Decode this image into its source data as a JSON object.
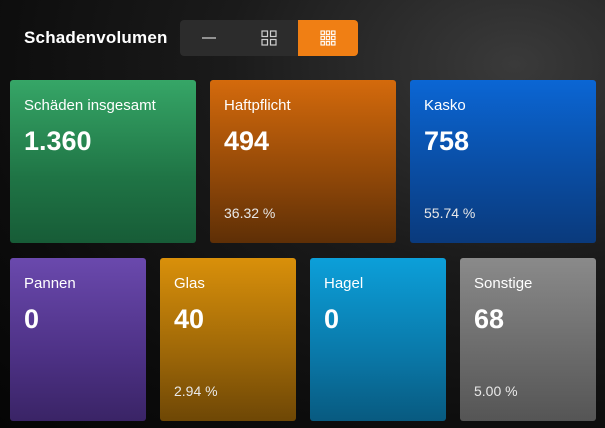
{
  "header": {
    "title": "Schadenvolumen",
    "view_toggle": {
      "options": [
        "list-view",
        "grid-4-view",
        "grid-9-view"
      ],
      "selected": "grid-9-view",
      "accent_color": "#f07f14"
    }
  },
  "cards": {
    "total": {
      "label": "Schäden insgesamt",
      "value": "1.360",
      "color": "#2a8f57"
    },
    "haft": {
      "label": "Haftpflicht",
      "value": "494",
      "pct": "36.32 %",
      "color": "#b55a0a"
    },
    "kasko": {
      "label": "Kasko",
      "value": "758",
      "pct": "55.74 %",
      "color": "#0a5ac0"
    },
    "pannen": {
      "label": "Pannen",
      "value": "0",
      "color": "#5c3d99"
    },
    "glas": {
      "label": "Glas",
      "value": "40",
      "pct": "2.94 %",
      "color": "#c4810a"
    },
    "hagel": {
      "label": "Hagel",
      "value": "0",
      "color": "#0b8cc2"
    },
    "sonstige": {
      "label": "Sonstige",
      "value": "68",
      "pct": "5.00 %",
      "color": "#7a7a7a"
    }
  }
}
